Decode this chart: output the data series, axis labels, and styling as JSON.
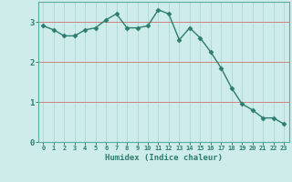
{
  "x": [
    0,
    1,
    2,
    3,
    4,
    5,
    6,
    7,
    8,
    9,
    10,
    11,
    12,
    13,
    14,
    15,
    16,
    17,
    18,
    19,
    20,
    21,
    22,
    23
  ],
  "y": [
    2.9,
    2.8,
    2.65,
    2.65,
    2.8,
    2.85,
    3.05,
    3.2,
    2.85,
    2.85,
    2.9,
    3.3,
    3.2,
    2.55,
    2.85,
    2.6,
    2.25,
    1.85,
    1.35,
    0.95,
    0.8,
    0.6,
    0.6,
    0.45
  ],
  "line_color": "#2d7d6e",
  "marker": "D",
  "marker_size": 2.5,
  "bg_color": "#ceecea",
  "grid_color_v": "#b0dbd8",
  "grid_color_h": "#e8a0a0",
  "xlabel": "Humidex (Indice chaleur)",
  "xlabel_color": "#2d7d6e",
  "tick_color": "#2d7d6e",
  "ylim": [
    0,
    3.5
  ],
  "xlim": [
    -0.5,
    23.5
  ],
  "yticks": [
    0,
    1,
    2,
    3
  ],
  "xticks": [
    0,
    1,
    2,
    3,
    4,
    5,
    6,
    7,
    8,
    9,
    10,
    11,
    12,
    13,
    14,
    15,
    16,
    17,
    18,
    19,
    20,
    21,
    22,
    23
  ],
  "spine_color": "#5aada0",
  "hline_color": "#d08080",
  "hlines": [
    1,
    2,
    3
  ]
}
